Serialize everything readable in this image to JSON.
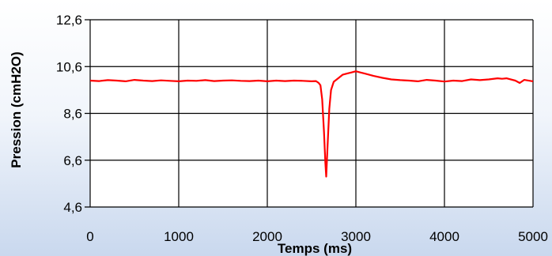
{
  "chart_data": {
    "type": "line",
    "xlabel": "Temps (ms)",
    "ylabel": "Pression (cmH2O)",
    "xlim": [
      0,
      5000
    ],
    "ylim": [
      4.6,
      12.6
    ],
    "x_ticks": [
      0,
      1000,
      2000,
      3000,
      4000,
      5000
    ],
    "y_ticks": [
      "4,6",
      "6,6",
      "8,6",
      "10,6",
      "12,6"
    ],
    "y_tick_values": [
      4.6,
      6.6,
      8.6,
      10.6,
      12.6
    ],
    "grid": true,
    "legend": "none",
    "series": [
      {
        "color": "#ff0000",
        "x": [
          0,
          100,
          200,
          300,
          400,
          500,
          600,
          700,
          800,
          900,
          1000,
          1100,
          1200,
          1300,
          1400,
          1500,
          1600,
          1700,
          1800,
          1900,
          2000,
          2100,
          2200,
          2300,
          2400,
          2500,
          2550,
          2580,
          2600,
          2620,
          2640,
          2655,
          2665,
          2680,
          2700,
          2720,
          2750,
          2800,
          2850,
          2900,
          2950,
          3000,
          3050,
          3100,
          3200,
          3300,
          3400,
          3500,
          3600,
          3700,
          3800,
          3900,
          4000,
          4100,
          4200,
          4300,
          4400,
          4500,
          4600,
          4650,
          4700,
          4800,
          4850,
          4900,
          5000
        ],
        "y": [
          10.0,
          9.98,
          10.02,
          10.0,
          9.97,
          10.03,
          10.0,
          9.98,
          10.01,
          9.99,
          9.97,
          10.0,
          9.99,
          10.02,
          9.98,
          10.0,
          10.01,
          9.99,
          9.98,
          10.0,
          9.97,
          10.0,
          9.98,
          10.0,
          9.99,
          9.97,
          9.98,
          9.9,
          9.8,
          9.2,
          7.8,
          6.5,
          5.9,
          7.2,
          8.8,
          9.6,
          9.95,
          10.1,
          10.25,
          10.3,
          10.35,
          10.4,
          10.35,
          10.3,
          10.2,
          10.12,
          10.05,
          10.02,
          10.0,
          9.97,
          10.03,
          10.0,
          9.96,
          10.0,
          9.98,
          10.05,
          10.02,
          10.05,
          10.1,
          10.08,
          10.1,
          10.0,
          9.9,
          10.03,
          9.97
        ]
      }
    ]
  }
}
